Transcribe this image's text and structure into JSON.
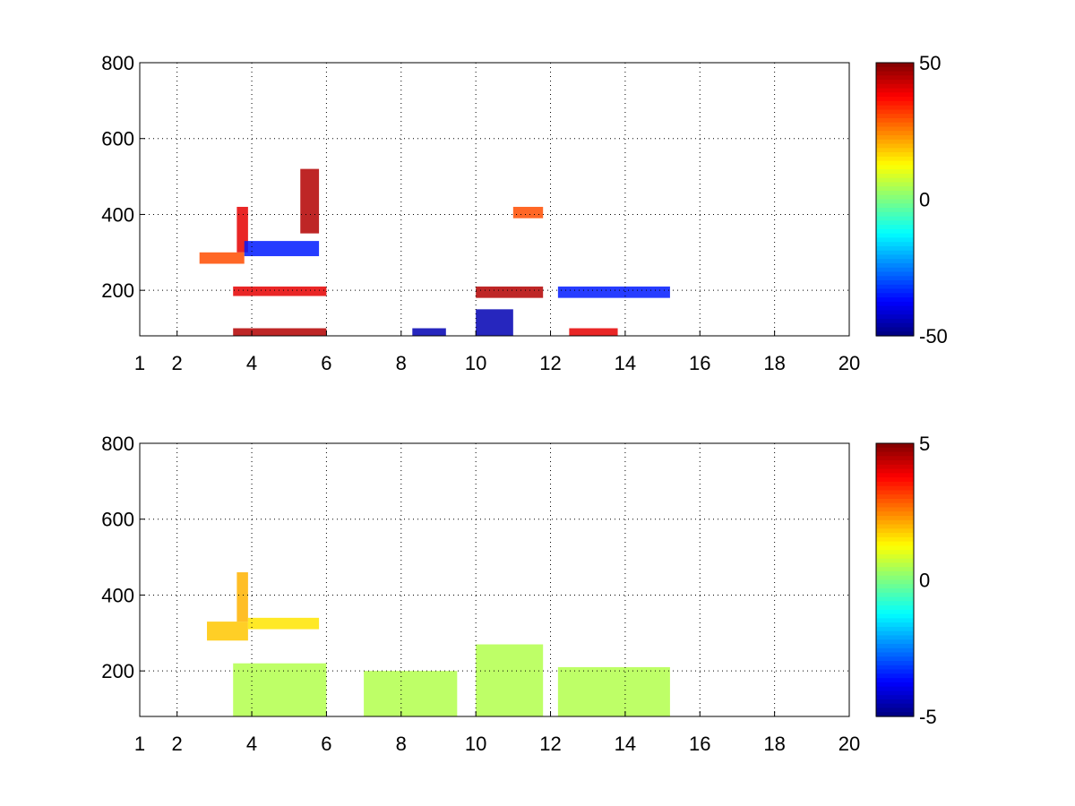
{
  "chart_data": [
    {
      "type": "heatmap",
      "title": "",
      "xlabel": "",
      "ylabel": "",
      "xlim": [
        1,
        20
      ],
      "ylim": [
        80,
        800
      ],
      "xticks": [
        "1",
        "2",
        "4",
        "6",
        "8",
        "10",
        "12",
        "14",
        "16",
        "18",
        "20"
      ],
      "xtick_values": [
        1,
        2,
        4,
        6,
        8,
        10,
        12,
        14,
        16,
        18,
        20
      ],
      "yticks": [
        "200",
        "400",
        "600",
        "800"
      ],
      "ytick_values": [
        200,
        400,
        600,
        800
      ],
      "grid": true,
      "colormap": "jet",
      "colorbar": {
        "min": -50,
        "max": 50,
        "ticks": [
          "50",
          "0",
          "-50"
        ],
        "tick_values": [
          50,
          0,
          -50
        ]
      },
      "features": [
        {
          "x": [
            2.6,
            3.8
          ],
          "y": [
            270,
            300
          ],
          "value": 30
        },
        {
          "x": [
            3.6,
            3.9
          ],
          "y": [
            300,
            420
          ],
          "value": 40
        },
        {
          "x": [
            3.8,
            5.8
          ],
          "y": [
            290,
            330
          ],
          "value": -35
        },
        {
          "x": [
            5.3,
            5.8
          ],
          "y": [
            350,
            520
          ],
          "value": 45
        },
        {
          "x": [
            3.5,
            6.0
          ],
          "y": [
            185,
            210
          ],
          "value": 40
        },
        {
          "x": [
            3.5,
            6.0
          ],
          "y": [
            80,
            100
          ],
          "value": 45
        },
        {
          "x": [
            10.0,
            11.8
          ],
          "y": [
            180,
            210
          ],
          "value": 45
        },
        {
          "x": [
            12.2,
            15.2
          ],
          "y": [
            180,
            210
          ],
          "value": -35
        },
        {
          "x": [
            10.0,
            11.0
          ],
          "y": [
            80,
            150
          ],
          "value": -45
        },
        {
          "x": [
            8.3,
            9.2
          ],
          "y": [
            80,
            100
          ],
          "value": -45
        },
        {
          "x": [
            12.5,
            13.8
          ],
          "y": [
            80,
            100
          ],
          "value": 40
        },
        {
          "x": [
            11.0,
            11.8
          ],
          "y": [
            390,
            420
          ],
          "value": 30
        }
      ]
    },
    {
      "type": "heatmap",
      "title": "",
      "xlabel": "",
      "ylabel": "",
      "xlim": [
        1,
        20
      ],
      "ylim": [
        80,
        800
      ],
      "xticks": [
        "1",
        "2",
        "4",
        "6",
        "8",
        "10",
        "12",
        "14",
        "16",
        "18",
        "20"
      ],
      "xtick_values": [
        1,
        2,
        4,
        6,
        8,
        10,
        12,
        14,
        16,
        18,
        20
      ],
      "yticks": [
        "200",
        "400",
        "600",
        "800"
      ],
      "ytick_values": [
        200,
        400,
        600,
        800
      ],
      "grid": true,
      "colormap": "jet",
      "colorbar": {
        "min": -5,
        "max": 5,
        "ticks": [
          "5",
          "0",
          "-5"
        ],
        "tick_values": [
          5,
          0,
          -5
        ]
      },
      "features": [
        {
          "x": [
            2.8,
            3.9
          ],
          "y": [
            280,
            330
          ],
          "value": 1.8
        },
        {
          "x": [
            3.6,
            3.9
          ],
          "y": [
            330,
            460
          ],
          "value": 2.0
        },
        {
          "x": [
            3.9,
            5.8
          ],
          "y": [
            310,
            340
          ],
          "value": 1.5
        },
        {
          "x": [
            3.5,
            6.0
          ],
          "y": [
            80,
            220
          ],
          "value": 0.5
        },
        {
          "x": [
            7.0,
            9.5
          ],
          "y": [
            80,
            200
          ],
          "value": 0.5
        },
        {
          "x": [
            10.0,
            11.8
          ],
          "y": [
            80,
            270
          ],
          "value": 0.5
        },
        {
          "x": [
            12.2,
            15.2
          ],
          "y": [
            80,
            210
          ],
          "value": 0.5
        }
      ]
    }
  ]
}
